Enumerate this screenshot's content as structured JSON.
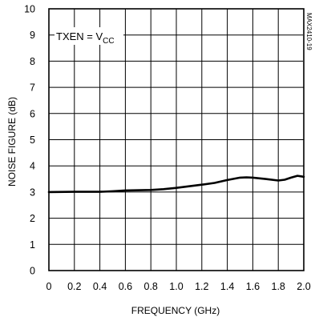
{
  "chart_data": {
    "type": "line",
    "title": "",
    "xlabel": "FREQUENCY (GHz)",
    "ylabel": "NOISE FIGURE (dB)",
    "xlim": [
      0,
      2.0
    ],
    "ylim": [
      0,
      10
    ],
    "x_ticks": [
      "0",
      "0.2",
      "0.4",
      "0.6",
      "0.8",
      "1.0",
      "1.2",
      "1.4",
      "1.6",
      "1.8",
      "2.0"
    ],
    "y_ticks": [
      "0",
      "1",
      "2",
      "3",
      "4",
      "5",
      "6",
      "7",
      "8",
      "9",
      "10"
    ],
    "grid": true,
    "annotation": {
      "main": "TXEN = V",
      "sub": "CC"
    },
    "watermark": "MAX2410-19",
    "series": [
      {
        "name": "",
        "x": [
          0,
          0.2,
          0.4,
          0.5,
          0.6,
          0.8,
          0.9,
          1.0,
          1.1,
          1.2,
          1.3,
          1.4,
          1.5,
          1.55,
          1.6,
          1.7,
          1.8,
          1.85,
          1.9,
          1.95,
          1.98,
          2.0
        ],
        "y": [
          3.0,
          3.01,
          3.01,
          3.03,
          3.06,
          3.08,
          3.11,
          3.16,
          3.22,
          3.28,
          3.35,
          3.46,
          3.55,
          3.56,
          3.55,
          3.5,
          3.44,
          3.47,
          3.55,
          3.62,
          3.6,
          3.58
        ]
      }
    ]
  }
}
